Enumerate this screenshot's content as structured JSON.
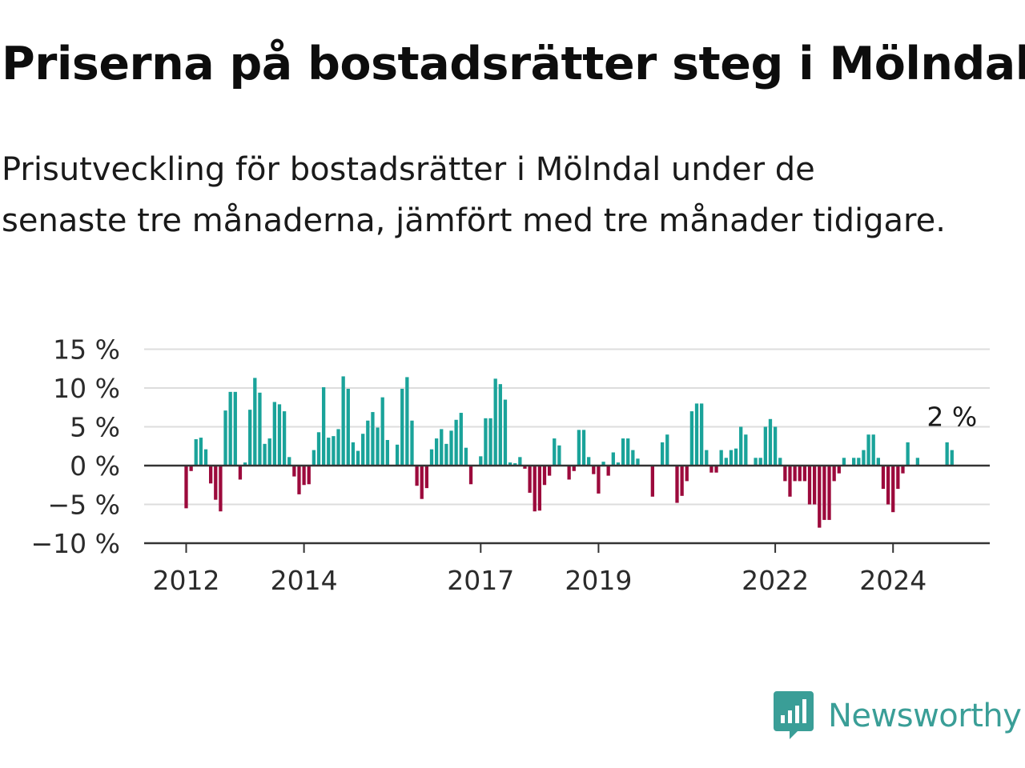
{
  "header": {
    "title": "Priserna på bostadsrätter steg i Mölndal",
    "subtitle": "Prisutveckling för bostadsrätter i Mölndal under de senaste tre månaderna, jämfört med tre månader tidigare."
  },
  "brand": {
    "name": "Newsworthy",
    "color": "#3a9e97"
  },
  "chart_data": {
    "type": "bar",
    "title": "",
    "xlabel": "",
    "ylabel": "",
    "ylim": [
      -10,
      15
    ],
    "yticks": [
      15,
      10,
      5,
      0,
      -5,
      -10
    ],
    "ytick_labels": [
      "15 %",
      "10 %",
      "5 %",
      "0 %",
      "−5 %",
      "−10 %"
    ],
    "xtick_labels": [
      {
        "label": "2012",
        "x": "2012-01"
      },
      {
        "label": "2014",
        "x": "2014-01"
      },
      {
        "label": "2017",
        "x": "2017-01"
      },
      {
        "label": "2019",
        "x": "2019-01"
      },
      {
        "label": "2022",
        "x": "2022-01"
      },
      {
        "label": "2024",
        "x": "2024-01"
      }
    ],
    "grid": true,
    "colors": {
      "positive": "#1aa39a",
      "negative": "#9c0a3c",
      "zero_line": "#333333",
      "grid": "#dddddd"
    },
    "last_value_label": "2 %",
    "start_month": "2012-01",
    "values": [
      -5.5,
      -0.7,
      3.4,
      3.6,
      2.1,
      -2.3,
      -4.4,
      -5.9,
      7.1,
      9.5,
      9.5,
      -1.8,
      0.4,
      7.2,
      11.3,
      9.4,
      2.8,
      3.5,
      8.2,
      7.9,
      7.0,
      1.1,
      -1.4,
      -3.7,
      -2.5,
      -2.4,
      2.0,
      4.3,
      10.1,
      3.6,
      3.8,
      4.7,
      11.5,
      9.9,
      3.0,
      1.9,
      4.1,
      5.8,
      6.9,
      4.9,
      8.8,
      3.3,
      0.0,
      2.7,
      9.9,
      11.4,
      5.8,
      -2.6,
      -4.3,
      -2.9,
      2.1,
      3.5,
      4.7,
      2.8,
      4.5,
      5.9,
      6.8,
      2.3,
      -2.4,
      0.0,
      1.2,
      6.1,
      6.1,
      11.2,
      10.5,
      8.5,
      0.4,
      0.3,
      1.1,
      -0.4,
      -3.5,
      -5.9,
      -5.8,
      -2.5,
      -1.3,
      3.5,
      2.6,
      0.0,
      -1.8,
      -0.7,
      4.6,
      4.6,
      1.1,
      -1.1,
      -3.6,
      0.5,
      -1.3,
      1.7,
      0.4,
      3.5,
      3.5,
      2.0,
      0.9,
      0.0,
      -0.1,
      -4.0,
      0.0,
      3.0,
      4.0,
      0.0,
      -4.8,
      -3.9,
      -2.0,
      7.0,
      8.0,
      8.0,
      2.0,
      -0.9,
      -0.9,
      2.0,
      1.0,
      2.0,
      2.2,
      5.0,
      4.0,
      0.0,
      1.0,
      1.0,
      5.0,
      6.0,
      5.0,
      1.0,
      -2.0,
      -4.0,
      -2.0,
      -2.0,
      -2.0,
      -5.0,
      -5.0,
      -8.0,
      -7.0,
      -7.0,
      -2.0,
      -1.0,
      1.0,
      0.0,
      1.0,
      1.0,
      2.0,
      4.0,
      4.0,
      1.0,
      -3.0,
      -5.0,
      -6.0,
      -3.0,
      -1.0,
      3.0,
      0.0,
      1.0,
      0.0,
      0.0,
      0.0,
      0.0,
      0.0,
      3.0,
      2.0
    ]
  }
}
